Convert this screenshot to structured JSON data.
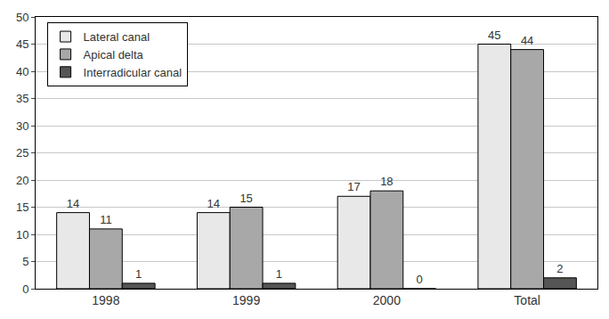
{
  "chart_data": {
    "type": "bar",
    "categories": [
      "1998",
      "1999",
      "2000",
      "Total"
    ],
    "series": [
      {
        "name": "Lateral canal",
        "color": "#e8e8e8",
        "values": [
          14,
          14,
          17,
          45
        ]
      },
      {
        "name": "Apical delta",
        "color": "#a8a8a8",
        "values": [
          11,
          15,
          18,
          44
        ]
      },
      {
        "name": "Interradicular canal",
        "color": "#555555",
        "values": [
          1,
          1,
          0,
          2
        ]
      }
    ],
    "ylim": [
      0,
      50
    ],
    "yticks": [
      0,
      5,
      10,
      15,
      20,
      25,
      30,
      35,
      40,
      45,
      50
    ],
    "grid": true,
    "legend": "top-left",
    "data_labels": true
  }
}
